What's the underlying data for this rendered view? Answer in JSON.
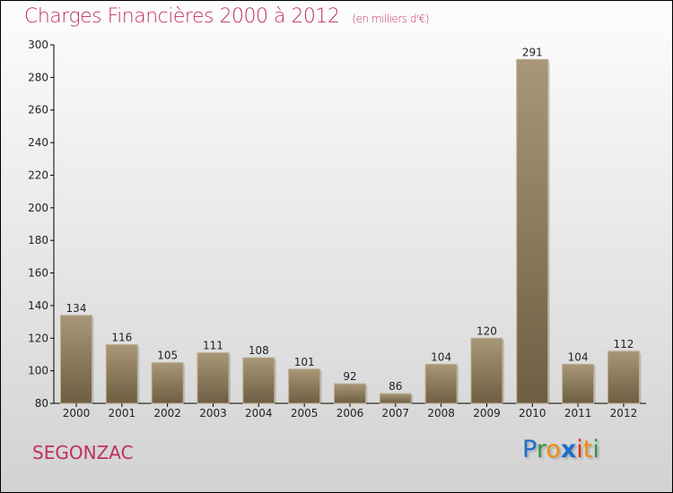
{
  "chart_data": {
    "type": "bar",
    "title": "Charges Financières 2000 à 2012",
    "unit_label": "(en milliers d'€)",
    "categories": [
      "2000",
      "2001",
      "2002",
      "2003",
      "2004",
      "2005",
      "2006",
      "2007",
      "2008",
      "2009",
      "2010",
      "2011",
      "2012"
    ],
    "values": [
      134,
      116,
      105,
      111,
      108,
      101,
      92,
      86,
      104,
      120,
      291,
      104,
      112
    ],
    "ylim": [
      80,
      300
    ],
    "yticks": [
      80,
      100,
      120,
      140,
      160,
      180,
      200,
      220,
      240,
      260,
      280,
      300
    ],
    "xlabel": "",
    "ylabel": "",
    "grid": false
  },
  "commune": "SEGONZAC",
  "logo": {
    "text": "Proxiti",
    "letters": [
      "P",
      "r",
      "o",
      "x",
      "i",
      "t",
      "i"
    ],
    "colors": [
      "#1a6fc9",
      "#2a9a3a",
      "#f08a10",
      "#1a6fc9",
      "#e03020",
      "#f08a10",
      "#2a9a3a"
    ]
  },
  "colors": {
    "accent": "#c0305f",
    "bar_top": "#a89878",
    "bar_bottom": "#6e5e42"
  }
}
